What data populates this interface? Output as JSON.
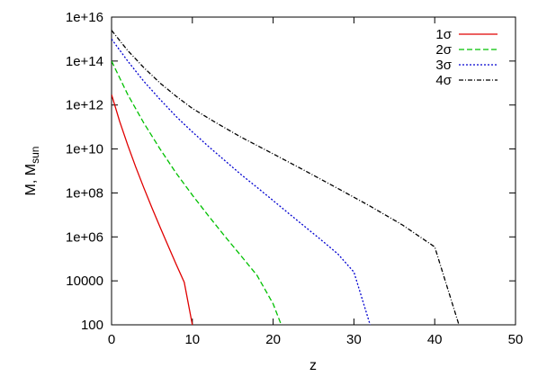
{
  "chart_data": {
    "type": "line",
    "title": "",
    "xlabel": "z",
    "ylabel_main": "M, M",
    "ylabel_sub": "sun",
    "xlim": [
      0,
      50
    ],
    "ylim": [
      100,
      1e+16
    ],
    "yscale": "log",
    "grid": false,
    "legend_position": "top-right",
    "x_ticks": [
      0,
      10,
      20,
      30,
      40,
      50
    ],
    "x_tick_labels": [
      "0",
      "10",
      "20",
      "30",
      "40",
      "50"
    ],
    "y_ticks": [
      100,
      10000,
      1000000,
      100000000,
      10000000000,
      1000000000000,
      100000000000000,
      10000000000000000
    ],
    "y_tick_labels": [
      "100",
      "10000",
      "1e+06",
      "1e+08",
      "1e+10",
      "1e+12",
      "1e+14",
      "1e+16"
    ],
    "series": [
      {
        "name": "1σ",
        "color": "#e00000",
        "dash": "solid",
        "x": [
          0,
          1,
          2,
          3,
          4,
          5,
          6,
          7,
          8,
          9,
          10
        ],
        "y": [
          3000000000000.0,
          180000000000.0,
          15000000000.0,
          1500000000.0,
          170000000.0,
          21000000.0,
          2800000.0,
          390000.0,
          57000.0,
          8600.0,
          100
        ]
      },
      {
        "name": "2σ",
        "color": "#00c000",
        "dash": "6,3",
        "x": [
          0,
          2,
          4,
          6,
          8,
          10,
          12,
          14,
          16,
          18,
          20,
          21
        ],
        "y": [
          100000000000000.0,
          3000000000000.0,
          150000000000.0,
          10000000000.0,
          800000000.0,
          80000000.0,
          9000000.0,
          1100000.0,
          140000.0,
          18000.0,
          900,
          100
        ]
      },
      {
        "name": "3σ",
        "color": "#0000d0",
        "dash": "2,2",
        "x": [
          0,
          2,
          4,
          6,
          8,
          10,
          12,
          14,
          16,
          18,
          20,
          22,
          24,
          26,
          28,
          30,
          32
        ],
        "y": [
          1000000000000000.0,
          100000000000000.0,
          12000000000000.0,
          1800000000000.0,
          300000000000.0,
          60000000000.0,
          13000000000.0,
          3000000000.0,
          700000000.0,
          180000000.0,
          45000000.0,
          11000000.0,
          2800000.0,
          700000.0,
          170000.0,
          25000.0,
          100
        ]
      },
      {
        "name": "4σ",
        "color": "#000000",
        "dash": "5,2,1,2",
        "x": [
          0,
          2,
          4,
          6,
          8,
          10,
          13,
          16,
          20,
          24,
          28,
          32,
          36,
          40,
          43
        ],
        "y": [
          2500000000000000.0,
          300000000000000.0,
          50000000000000.0,
          10000000000000.0,
          2500000000000.0,
          700000000000.0,
          150000000000.0,
          35000000000.0,
          6000000000.0,
          1000000000.0,
          160000000.0,
          25000000.0,
          3500000.0,
          350000.0,
          100
        ]
      }
    ]
  }
}
